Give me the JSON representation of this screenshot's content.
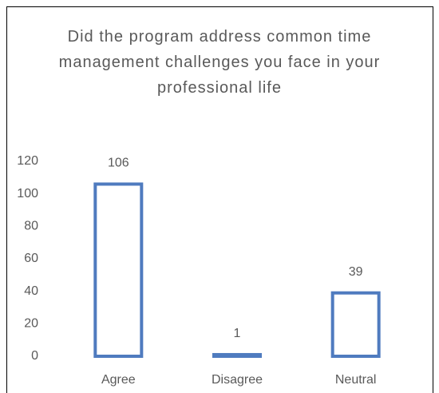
{
  "chart_data": {
    "type": "bar",
    "title": "Did the program address common time management challenges you face in your professional life",
    "categories": [
      "Agree",
      "Disagree",
      "Neutral"
    ],
    "values": [
      106,
      1,
      39
    ],
    "color": "#4f7bbf",
    "ylim": [
      0,
      120
    ],
    "yticks": [
      0,
      20,
      40,
      60,
      80,
      100,
      120
    ],
    "grid": false
  }
}
